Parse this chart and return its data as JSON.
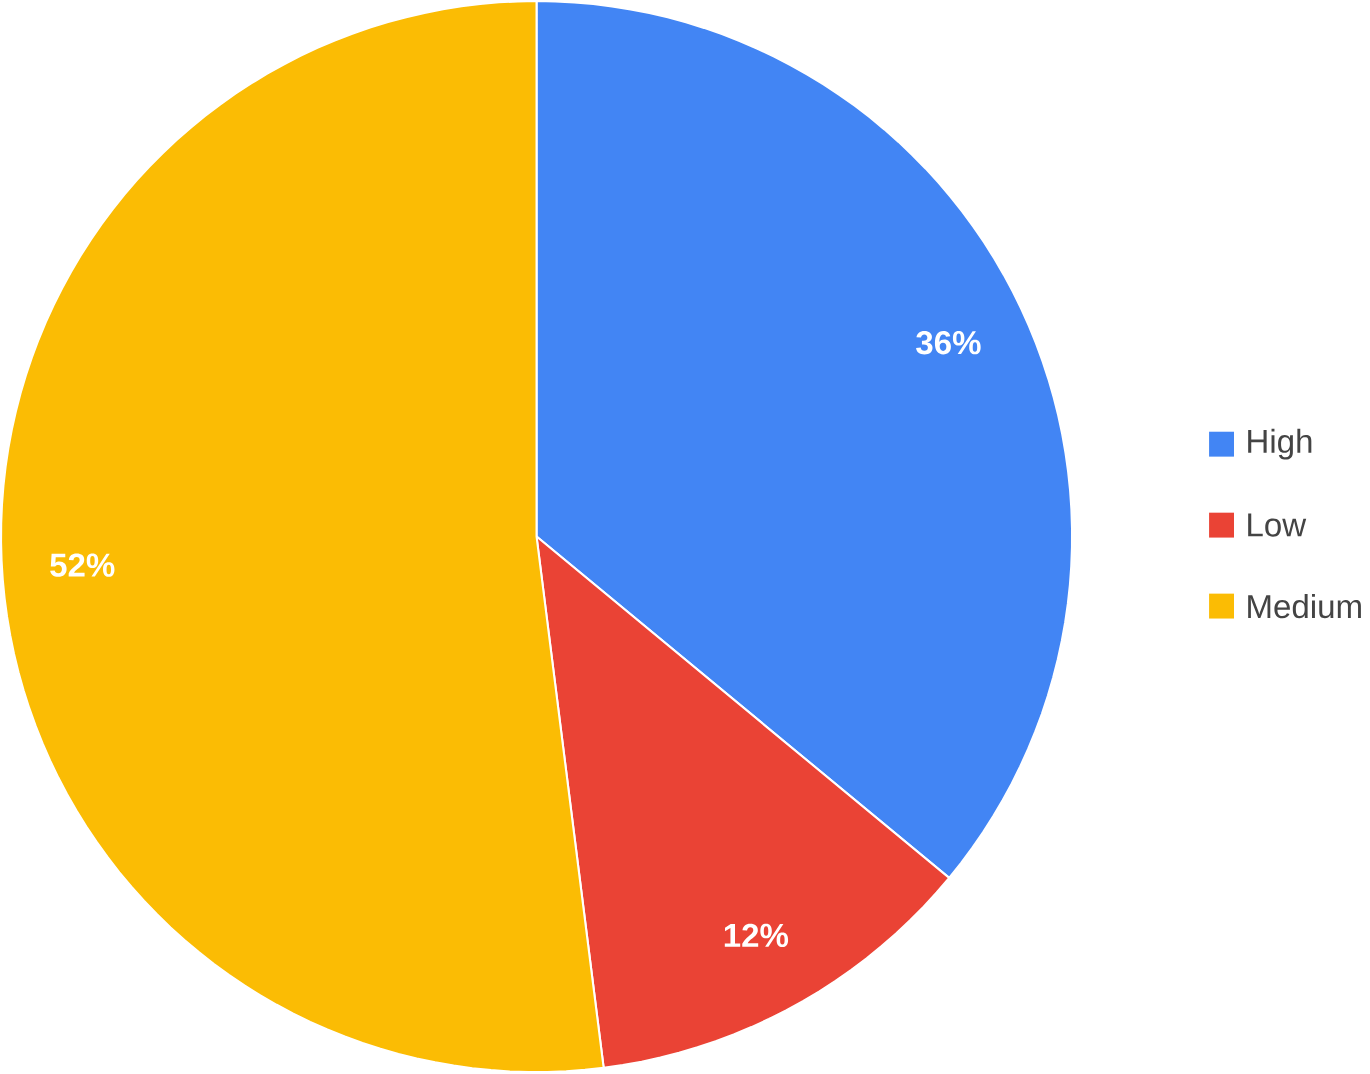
{
  "chart_data": {
    "type": "pie",
    "categories": [
      "High",
      "Low",
      "Medium"
    ],
    "values": [
      36,
      12,
      52
    ],
    "colors": [
      "#4285f4",
      "#ea4335",
      "#fbbc04"
    ],
    "value_labels": [
      "36%",
      "12%",
      "52%"
    ],
    "legend": "right"
  }
}
